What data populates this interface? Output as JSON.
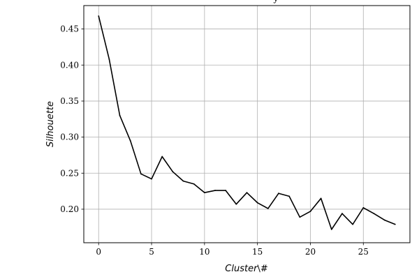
{
  "chart_data": {
    "type": "line",
    "title": "y",
    "xlabel": "Cluster",
    "xlabel_suffix": "\\#",
    "ylabel": "Silhouette",
    "xlim": [
      -1.4,
      29.4
    ],
    "ylim": [
      0.1535,
      0.4825
    ],
    "xticks": [
      0,
      5,
      10,
      15,
      20,
      25
    ],
    "yticks": [
      0.2,
      0.25,
      0.3,
      0.35,
      0.4,
      0.45
    ],
    "ytick_labels": [
      "0.20",
      "0.25",
      "0.30",
      "0.35",
      "0.40",
      "0.45"
    ],
    "grid": true,
    "line_color": "#000000",
    "grid_color": "#b0b0b0",
    "series": [
      {
        "x": [
          0,
          1,
          2,
          3,
          4,
          5,
          6,
          7,
          8,
          9,
          10,
          11,
          12,
          13,
          14,
          15,
          16,
          17,
          18,
          19,
          20,
          21,
          22,
          23,
          24,
          25,
          26,
          27,
          28
        ],
        "values": [
          0.468,
          0.408,
          0.33,
          0.295,
          0.249,
          0.242,
          0.273,
          0.252,
          0.239,
          0.235,
          0.223,
          0.226,
          0.226,
          0.207,
          0.223,
          0.209,
          0.201,
          0.222,
          0.218,
          0.189,
          0.197,
          0.215,
          0.172,
          0.194,
          0.179,
          0.202,
          0.194,
          0.185,
          0.179
        ]
      }
    ]
  }
}
